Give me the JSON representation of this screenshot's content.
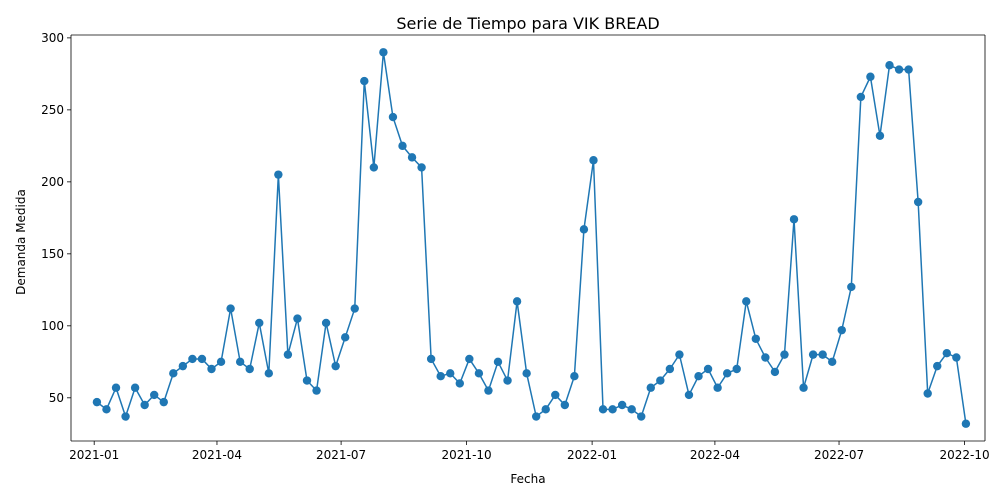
{
  "chart_data": {
    "type": "line",
    "title": "Serie de Tiempo para VIK BREAD",
    "xlabel": "Fecha",
    "ylabel": "Demanda Medida",
    "x_ticks": [
      "2021-01",
      "2021-04",
      "2021-07",
      "2021-10",
      "2022-01",
      "2022-04",
      "2022-07",
      "2022-10"
    ],
    "y_ticks": [
      50,
      100,
      150,
      200,
      250,
      300
    ],
    "ylim": [
      20,
      302
    ],
    "xlim": [
      "2020-12-15",
      "2022-10-16"
    ],
    "grid": false,
    "colors": {
      "series": "#1f77b4"
    },
    "series": [
      {
        "x": [
          "2021-01-03",
          "2021-01-10",
          "2021-01-17",
          "2021-01-24",
          "2021-01-31",
          "2021-02-07",
          "2021-02-14",
          "2021-02-21",
          "2021-02-28",
          "2021-03-07",
          "2021-03-14",
          "2021-03-21",
          "2021-03-28",
          "2021-04-04",
          "2021-04-11",
          "2021-04-18",
          "2021-04-25",
          "2021-05-02",
          "2021-05-09",
          "2021-05-16",
          "2021-05-23",
          "2021-05-30",
          "2021-06-06",
          "2021-06-13",
          "2021-06-20",
          "2021-06-27",
          "2021-07-04",
          "2021-07-11",
          "2021-07-18",
          "2021-07-25",
          "2021-08-01",
          "2021-08-08",
          "2021-08-15",
          "2021-08-22",
          "2021-08-29",
          "2021-09-05",
          "2021-09-12",
          "2021-09-19",
          "2021-09-26",
          "2021-10-03",
          "2021-10-10",
          "2021-10-17",
          "2021-10-24",
          "2021-10-31",
          "2021-11-07",
          "2021-11-14",
          "2021-11-21",
          "2021-11-28",
          "2021-12-05",
          "2021-12-12",
          "2021-12-19",
          "2021-12-26",
          "2022-01-02",
          "2022-01-09",
          "2022-01-16",
          "2022-01-23",
          "2022-01-30",
          "2022-02-06",
          "2022-02-13",
          "2022-02-20",
          "2022-02-27",
          "2022-03-06",
          "2022-03-13",
          "2022-03-20",
          "2022-03-27",
          "2022-04-03",
          "2022-04-10",
          "2022-04-17",
          "2022-04-24",
          "2022-05-01",
          "2022-05-08",
          "2022-05-15",
          "2022-05-22",
          "2022-05-29",
          "2022-06-05",
          "2022-06-12",
          "2022-06-19",
          "2022-06-26",
          "2022-07-03",
          "2022-07-10",
          "2022-07-17",
          "2022-07-24",
          "2022-07-31",
          "2022-08-07",
          "2022-08-14",
          "2022-08-21",
          "2022-08-28",
          "2022-09-04",
          "2022-09-11",
          "2022-09-18",
          "2022-09-25",
          "2022-10-02"
        ],
        "values": [
          47,
          42,
          57,
          37,
          57,
          45,
          52,
          47,
          67,
          72,
          77,
          77,
          70,
          75,
          112,
          75,
          70,
          102,
          67,
          205,
          80,
          105,
          62,
          55,
          102,
          72,
          92,
          112,
          270,
          210,
          290,
          245,
          225,
          217,
          210,
          77,
          65,
          67,
          60,
          77,
          67,
          55,
          75,
          62,
          117,
          67,
          37,
          42,
          52,
          45,
          65,
          167,
          215,
          42,
          42,
          45,
          42,
          37,
          57,
          62,
          70,
          80,
          52,
          65,
          70,
          57,
          67,
          70,
          117,
          91,
          78,
          68,
          80,
          174,
          57,
          80,
          80,
          75,
          97,
          127,
          259,
          273,
          232,
          281,
          278,
          278,
          186,
          53,
          72,
          81,
          78,
          32
        ]
      }
    ]
  }
}
